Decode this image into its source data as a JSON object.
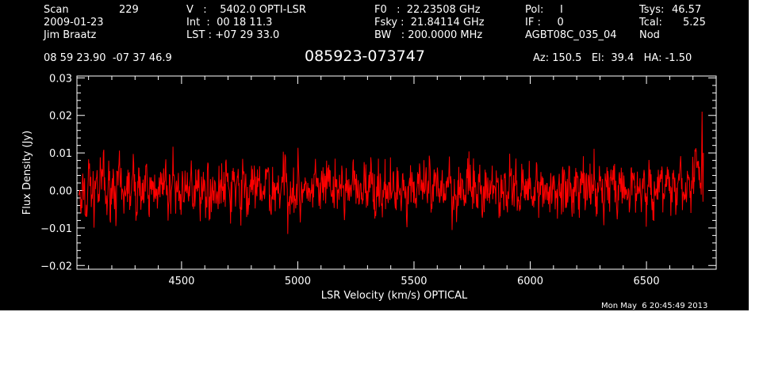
{
  "header": {
    "scan_label": "Scan",
    "scan_value": "229",
    "date": "2009-01-23",
    "observer": "Jim Braatz",
    "v_line": "V   :    5402.0 OPTI-LSR",
    "int_line": "Int  :  00 18 11.3",
    "lst_line": "LST : +07 29 33.0",
    "f0_line": "F0   :  22.23508 GHz",
    "fsky_line": "Fsky :  21.84114 GHz",
    "bw_line": "BW   : 200.0000 MHz",
    "pol_line": "Pol:     I",
    "if_line": "IF :     0",
    "project": "AGBT08C_035_04",
    "tsys_label": "Tsys:",
    "tsys_value": "46.57",
    "tcal_label": "Tcal:",
    "tcal_value": "5.25",
    "mode": "Nod",
    "coords": "08 59 23.90  -07 37 46.9",
    "source": "085923-073747",
    "azel": "Az: 150.5   El:  39.4   HA: -1.50"
  },
  "timestamp": "Mon May  6 20:45:49 2013",
  "colors": {
    "background": "#000000",
    "trace": "#ff0000",
    "axes": "#ffffff"
  },
  "chart_data": {
    "type": "line",
    "xlabel": "LSR Velocity (km/s) OPTICAL",
    "ylabel": "Flux Density (Jy)",
    "xlim": [
      4050,
      6800
    ],
    "ylim": [
      -0.021,
      0.0305
    ],
    "xticks": [
      4500,
      5000,
      5500,
      6000,
      6500
    ],
    "xtick_labels": [
      "4500",
      "5000",
      "5500",
      "6000",
      "6500"
    ],
    "yticks": [
      -0.02,
      -0.01,
      0.0,
      0.01,
      0.02,
      0.03
    ],
    "ytick_labels": [
      "−0.02",
      "−0.01",
      "0.00",
      "0.01",
      "0.02",
      "0.03"
    ],
    "grid": false,
    "series": [
      {
        "x_start": 4058,
        "x_end": 6745,
        "noise_rms": 0.0045,
        "note_shape": "noise spectrum around 0.00 Jy with spike near 0.021 at right edge",
        "values": [
          0.001,
          -0.012,
          0.004,
          -0.013,
          0.009,
          0.002,
          -0.006,
          0.007,
          -0.003,
          0.005,
          0.01,
          -0.008,
          0.003,
          -0.002,
          0.006,
          -0.005,
          0.008,
          0.0,
          -0.007,
          0.004,
          0.002,
          -0.004,
          0.009,
          -0.006,
          0.001,
          0.005,
          -0.003,
          0.007,
          -0.009,
          0.003,
          0.0,
          0.006,
          -0.005,
          0.004,
          -0.002,
          0.008,
          -0.007,
          0.002,
          0.011,
          -0.004,
          0.003,
          -0.006,
          0.005,
          0.001,
          -0.008,
          0.007,
          -0.002,
          0.004,
          0.009,
          -0.005,
          0.002,
          -0.003,
          0.006,
          -0.009,
          0.004,
          0.001,
          -0.006,
          0.008,
          -0.002,
          0.003,
          0.005,
          -0.007,
          0.01,
          -0.003,
          0.002,
          -0.005,
          0.006,
          0.0,
          -0.008,
          0.004,
          0.007,
          -0.004,
          0.001,
          0.005,
          -0.006,
          0.003,
          0.009,
          -0.007,
          0.002,
          -0.003,
          0.006,
          -0.005,
          0.004,
          0.011,
          -0.008,
          0.001,
          0.003,
          -0.004,
          0.007,
          -0.006,
          0.002,
          0.005,
          -0.009,
          0.004,
          -0.002,
          0.008,
          0.0,
          -0.005,
          0.006,
          -0.003,
          0.003,
          0.009,
          -0.007,
          0.002,
          -0.004,
          0.005,
          0.001,
          -0.006,
          0.008,
          -0.003,
          0.004,
          0.006,
          -0.008,
          0.002,
          -0.002,
          0.007,
          -0.005,
          0.003,
          0.01,
          -0.006,
          0.001,
          0.004,
          -0.004,
          0.006,
          -0.009,
          0.003,
          0.002,
          -0.005,
          0.008,
          -0.003,
          0.005,
          0.0,
          -0.007,
          0.004,
          0.007,
          -0.004,
          0.002,
          0.009,
          -0.006,
          0.003,
          -0.002,
          0.006,
          -0.008,
          0.004,
          0.001,
          -0.005,
          0.007,
          -0.003,
          0.005,
          0.01,
          -0.007,
          0.002,
          -0.004,
          0.006,
          0.0,
          -0.006,
          0.004,
          0.008,
          -0.005,
          0.003,
          -0.003,
          0.007,
          -0.01,
          0.004,
          0.002,
          -0.004,
          0.006,
          -0.002,
          0.009,
          -0.007,
          0.003,
          0.001,
          -0.005,
          0.008,
          -0.003,
          0.004,
          0.006,
          -0.008,
          0.002,
          0.005,
          -0.004,
          0.007,
          -0.006,
          0.003,
          0.011,
          -0.005,
          0.001,
          -0.003,
          0.006,
          -0.007,
          0.004,
          0.002,
          -0.005,
          0.009,
          -0.002,
          0.005,
          -0.008,
          0.003,
          0.001,
          -0.004,
          0.007,
          -0.006,
          0.004,
          0.008,
          -0.005,
          0.002,
          -0.003,
          0.006,
          -0.009,
          0.005,
          0.001,
          -0.006,
          0.008,
          -0.002,
          0.004,
          0.01,
          -0.007,
          0.002,
          -0.004,
          0.006,
          0.0,
          -0.005,
          0.005,
          0.007,
          -0.006,
          0.003,
          -0.002,
          0.008,
          -0.01,
          0.004,
          0.002,
          -0.004,
          0.006,
          -0.003,
          0.011,
          -0.007,
          0.003,
          0.001,
          -0.005,
          0.009,
          -0.004,
          0.006,
          0.012,
          -0.006,
          0.005,
          0.013,
          -0.004,
          0.008,
          0.021,
          0.006,
          -0.003,
          0.01
        ]
      }
    ]
  }
}
